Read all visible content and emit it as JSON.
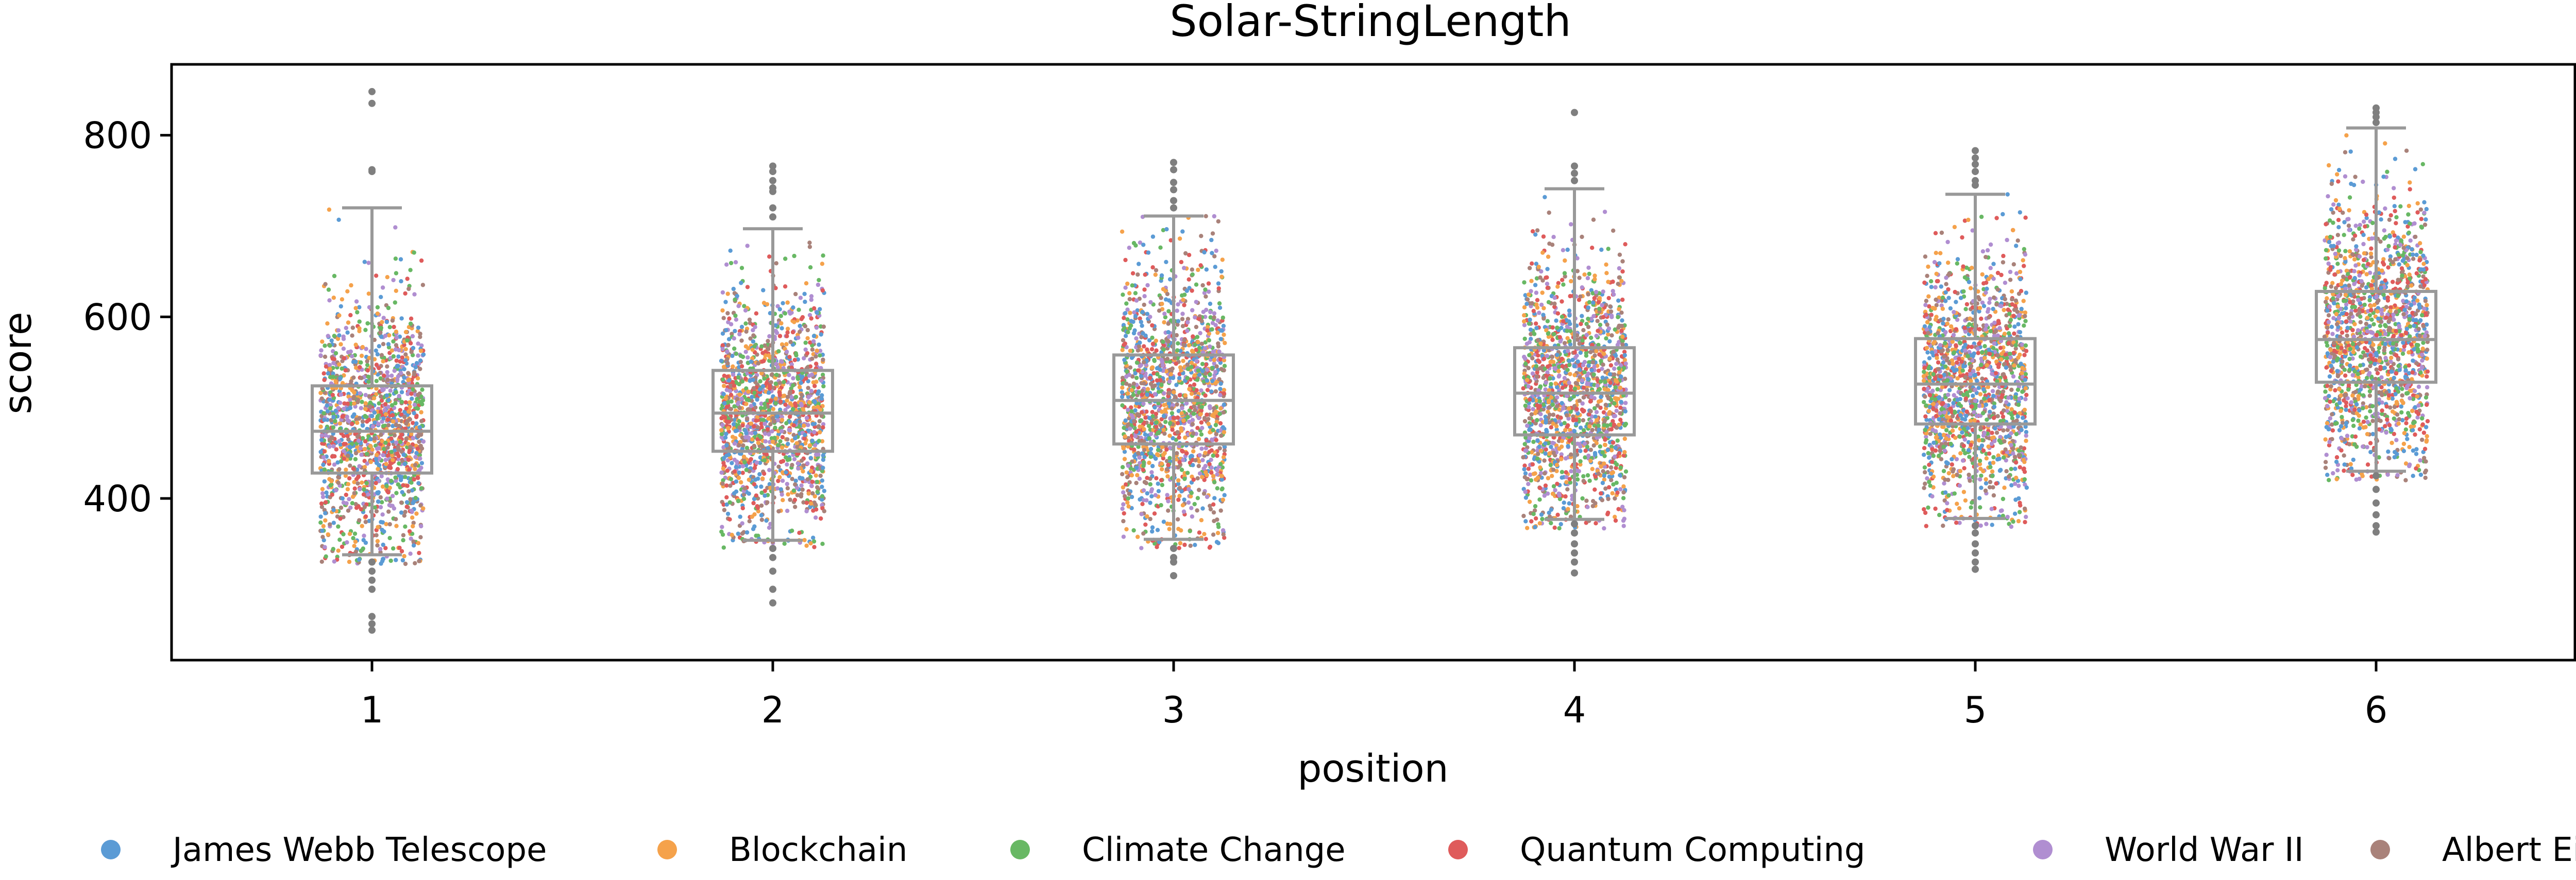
{
  "chart_data": {
    "type": "box_strip",
    "title": "Solar-StringLength",
    "xlabel": "position",
    "ylabel": "score",
    "categories": [
      "1",
      "2",
      "3",
      "4",
      "5",
      "6"
    ],
    "ylim": [
      222,
      878
    ],
    "yticks": [
      400,
      600,
      800
    ],
    "grid": false,
    "legend_placement": "bottom",
    "box_color": "#999999",
    "boxes": [
      {
        "category": "1",
        "whisker_low": 338,
        "q1": 428,
        "median": 474,
        "q3": 524,
        "whisker_high": 720,
        "outliers": [
          848,
          835,
          762,
          760,
          330,
          320,
          310,
          300,
          270,
          262,
          255
        ]
      },
      {
        "category": "2",
        "whisker_low": 354,
        "q1": 452,
        "median": 494,
        "q3": 541,
        "whisker_high": 697,
        "outliers": [
          766,
          760,
          750,
          742,
          738,
          720,
          710,
          345,
          335,
          320,
          300,
          285
        ]
      },
      {
        "category": "3",
        "whisker_low": 355,
        "q1": 460,
        "median": 508,
        "q3": 558,
        "whisker_high": 711,
        "outliers": [
          770,
          762,
          748,
          740,
          728,
          720,
          345,
          335,
          330,
          315
        ]
      },
      {
        "category": "4",
        "whisker_low": 377,
        "q1": 470,
        "median": 516,
        "q3": 566,
        "whisker_high": 741,
        "outliers": [
          825,
          766,
          758,
          750,
          372,
          362,
          350,
          340,
          330,
          318
        ]
      },
      {
        "category": "5",
        "whisker_low": 378,
        "q1": 482,
        "median": 526,
        "q3": 576,
        "whisker_high": 735,
        "outliers": [
          783,
          775,
          768,
          760,
          750,
          745,
          370,
          362,
          350,
          340,
          330,
          322
        ]
      },
      {
        "category": "6",
        "whisker_low": 430,
        "q1": 528,
        "median": 575,
        "q3": 628,
        "whisker_high": 808,
        "outliers": [
          830,
          825,
          820,
          814,
          425,
          410,
          395,
          382,
          370,
          363
        ]
      }
    ],
    "series": [
      {
        "name": "James Webb Telescope",
        "color": "#5b9bd5"
      },
      {
        "name": "Blockchain",
        "color": "#f5a24b"
      },
      {
        "name": "Climate Change",
        "color": "#68b864"
      },
      {
        "name": "Quantum Computing",
        "color": "#df5b5b"
      },
      {
        "name": "World War II",
        "color": "#b08ed1"
      },
      {
        "name": "Albert Einstein",
        "color": "#a9827a"
      }
    ],
    "points_per_position": 1500
  }
}
